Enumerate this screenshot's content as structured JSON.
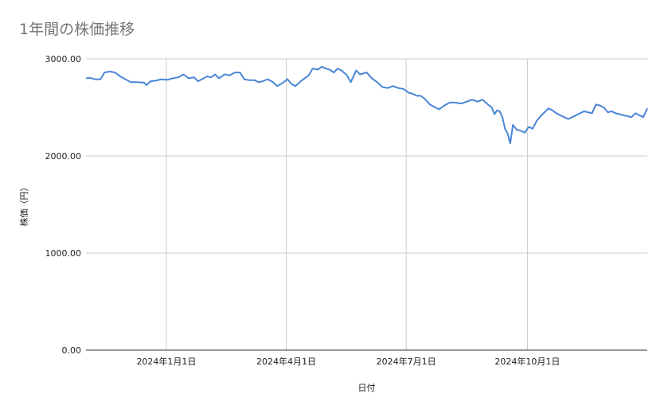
{
  "chart_data": {
    "type": "line",
    "title": "1年間の株価推移",
    "xlabel": "日付",
    "ylabel": "株価（円）",
    "ylim": [
      0,
      3000
    ],
    "yticks": [
      "0.00",
      "1000.00",
      "2000.00",
      "3000.00"
    ],
    "xlim": [
      "2023-11-01",
      "2024-12-31"
    ],
    "xticks": [
      {
        "date": "2024-01-01",
        "label": "2024年1月1日"
      },
      {
        "date": "2024-04-01",
        "label": "2024年4月1日"
      },
      {
        "date": "2024-07-01",
        "label": "2024年7月1日"
      },
      {
        "date": "2024-10-01",
        "label": "2024年10月1日"
      }
    ],
    "grid": true,
    "line_color": "#4a86d8",
    "series": [
      {
        "points": [
          [
            "2023-11-01",
            2800
          ],
          [
            "2023-11-04",
            2805
          ],
          [
            "2023-11-08",
            2790
          ],
          [
            "2023-11-12",
            2790
          ],
          [
            "2023-11-15",
            2860
          ],
          [
            "2023-11-19",
            2870
          ],
          [
            "2023-11-23",
            2860
          ],
          [
            "2023-11-27",
            2820
          ],
          [
            "2023-12-01",
            2790
          ],
          [
            "2023-12-05",
            2760
          ],
          [
            "2023-12-10",
            2760
          ],
          [
            "2023-12-15",
            2755
          ],
          [
            "2023-12-17",
            2730
          ],
          [
            "2023-12-20",
            2770
          ],
          [
            "2023-12-24",
            2775
          ],
          [
            "2023-12-28",
            2790
          ],
          [
            "2024-01-02",
            2785
          ],
          [
            "2024-01-06",
            2800
          ],
          [
            "2024-01-10",
            2810
          ],
          [
            "2024-01-14",
            2840
          ],
          [
            "2024-01-18",
            2800
          ],
          [
            "2024-01-22",
            2810
          ],
          [
            "2024-01-25",
            2770
          ],
          [
            "2024-01-28",
            2790
          ],
          [
            "2024-02-01",
            2820
          ],
          [
            "2024-02-04",
            2810
          ],
          [
            "2024-02-07",
            2840
          ],
          [
            "2024-02-10",
            2800
          ],
          [
            "2024-02-14",
            2840
          ],
          [
            "2024-02-18",
            2830
          ],
          [
            "2024-02-22",
            2860
          ],
          [
            "2024-02-26",
            2860
          ],
          [
            "2024-02-29",
            2790
          ],
          [
            "2024-03-04",
            2780
          ],
          [
            "2024-03-08",
            2780
          ],
          [
            "2024-03-11",
            2760
          ],
          [
            "2024-03-14",
            2770
          ],
          [
            "2024-03-18",
            2790
          ],
          [
            "2024-03-22",
            2760
          ],
          [
            "2024-03-25",
            2720
          ],
          [
            "2024-03-29",
            2750
          ],
          [
            "2024-04-02",
            2790
          ],
          [
            "2024-04-05",
            2740
          ],
          [
            "2024-04-08",
            2720
          ],
          [
            "2024-04-12",
            2770
          ],
          [
            "2024-04-15",
            2800
          ],
          [
            "2024-04-18",
            2830
          ],
          [
            "2024-04-21",
            2900
          ],
          [
            "2024-04-25",
            2890
          ],
          [
            "2024-04-28",
            2920
          ],
          [
            "2024-05-01",
            2900
          ],
          [
            "2024-05-04",
            2890
          ],
          [
            "2024-05-07",
            2860
          ],
          [
            "2024-05-10",
            2900
          ],
          [
            "2024-05-13",
            2880
          ],
          [
            "2024-05-17",
            2830
          ],
          [
            "2024-05-20",
            2760
          ],
          [
            "2024-05-24",
            2880
          ],
          [
            "2024-05-27",
            2840
          ],
          [
            "2024-06-01",
            2860
          ],
          [
            "2024-06-05",
            2800
          ],
          [
            "2024-06-09",
            2760
          ],
          [
            "2024-06-13",
            2710
          ],
          [
            "2024-06-17",
            2700
          ],
          [
            "2024-06-21",
            2720
          ],
          [
            "2024-06-25",
            2700
          ],
          [
            "2024-06-29",
            2690
          ],
          [
            "2024-07-03",
            2650
          ],
          [
            "2024-07-06",
            2640
          ],
          [
            "2024-07-09",
            2620
          ],
          [
            "2024-07-12",
            2620
          ],
          [
            "2024-07-15",
            2590
          ],
          [
            "2024-07-19",
            2530
          ],
          [
            "2024-07-23",
            2500
          ],
          [
            "2024-07-26",
            2480
          ],
          [
            "2024-07-30",
            2520
          ],
          [
            "2024-08-03",
            2550
          ],
          [
            "2024-08-07",
            2550
          ],
          [
            "2024-08-12",
            2540
          ],
          [
            "2024-08-16",
            2560
          ],
          [
            "2024-08-20",
            2580
          ],
          [
            "2024-08-24",
            2560
          ],
          [
            "2024-08-28",
            2580
          ],
          [
            "2024-09-01",
            2530
          ],
          [
            "2024-09-04",
            2500
          ],
          [
            "2024-09-06",
            2430
          ],
          [
            "2024-09-08",
            2470
          ],
          [
            "2024-09-10",
            2460
          ],
          [
            "2024-09-12",
            2400
          ],
          [
            "2024-09-14",
            2280
          ],
          [
            "2024-09-16",
            2230
          ],
          [
            "2024-09-18",
            2130
          ],
          [
            "2024-09-20",
            2320
          ],
          [
            "2024-09-23",
            2270
          ],
          [
            "2024-09-26",
            2260
          ],
          [
            "2024-09-29",
            2240
          ],
          [
            "2024-10-02",
            2300
          ],
          [
            "2024-10-05",
            2280
          ],
          [
            "2024-10-08",
            2360
          ],
          [
            "2024-10-11",
            2410
          ],
          [
            "2024-10-14",
            2450
          ],
          [
            "2024-10-17",
            2490
          ],
          [
            "2024-10-20",
            2470
          ],
          [
            "2024-10-23",
            2440
          ],
          [
            "2024-10-26",
            2420
          ],
          [
            "2024-10-29",
            2400
          ],
          [
            "2024-11-01",
            2380
          ],
          [
            "2024-11-04",
            2400
          ],
          [
            "2024-11-07",
            2420
          ],
          [
            "2024-11-10",
            2440
          ],
          [
            "2024-11-13",
            2460
          ],
          [
            "2024-11-16",
            2450
          ],
          [
            "2024-11-19",
            2440
          ],
          [
            "2024-11-22",
            2530
          ],
          [
            "2024-11-25",
            2520
          ],
          [
            "2024-11-28",
            2500
          ],
          [
            "2024-12-01",
            2450
          ],
          [
            "2024-12-04",
            2460
          ],
          [
            "2024-12-07",
            2440
          ],
          [
            "2024-12-10",
            2430
          ],
          [
            "2024-12-13",
            2420
          ],
          [
            "2024-12-16",
            2410
          ],
          [
            "2024-12-19",
            2400
          ],
          [
            "2024-12-22",
            2440
          ],
          [
            "2024-12-25",
            2420
          ],
          [
            "2024-12-28",
            2400
          ],
          [
            "2024-12-31",
            2490
          ]
        ]
      }
    ]
  }
}
